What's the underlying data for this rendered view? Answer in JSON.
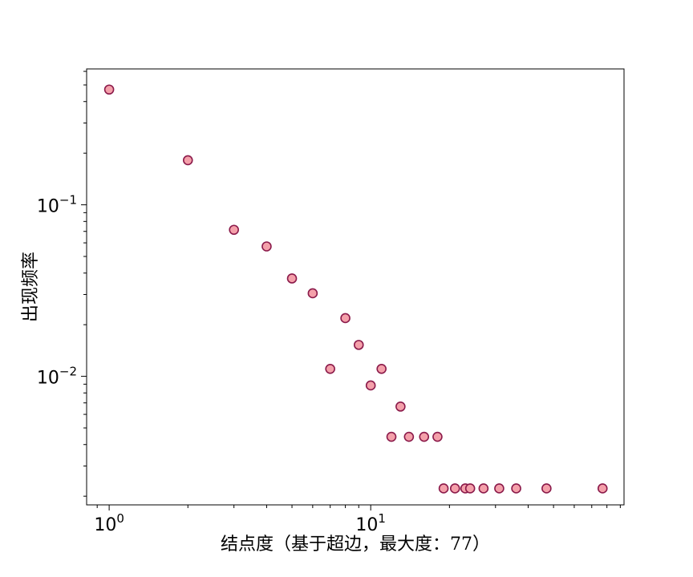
{
  "chart_data": {
    "type": "scatter",
    "title": "",
    "xlabel": "结点度（基于超边，最大度：77）",
    "ylabel": "出现频率",
    "xscale": "log",
    "yscale": "log",
    "xlim": [
      0.82,
      93
    ],
    "ylim": [
      0.00178,
      0.62
    ],
    "grid": false,
    "legend": "none",
    "x_ticks": [
      {
        "value": 1,
        "base": "10",
        "exp": "0"
      },
      {
        "value": 10,
        "base": "10",
        "exp": "1"
      }
    ],
    "y_ticks": [
      {
        "value": 0.1,
        "base": "10",
        "exp": "−1"
      },
      {
        "value": 0.01,
        "base": "10",
        "exp": "−2"
      }
    ],
    "marker": {
      "fill": "#f4a0aa",
      "edge": "#8b1a4a"
    },
    "points": [
      {
        "x": 1,
        "y": 0.47
      },
      {
        "x": 2,
        "y": 0.182
      },
      {
        "x": 3,
        "y": 0.0715
      },
      {
        "x": 4,
        "y": 0.0572
      },
      {
        "x": 5,
        "y": 0.0372
      },
      {
        "x": 6,
        "y": 0.0305
      },
      {
        "x": 7,
        "y": 0.01105
      },
      {
        "x": 8,
        "y": 0.02185
      },
      {
        "x": 9,
        "y": 0.01525
      },
      {
        "x": 10,
        "y": 0.00885
      },
      {
        "x": 11,
        "y": 0.01105
      },
      {
        "x": 13,
        "y": 0.00666
      },
      {
        "x": 12,
        "y": 0.00444
      },
      {
        "x": 14,
        "y": 0.00444
      },
      {
        "x": 16,
        "y": 0.00444
      },
      {
        "x": 18,
        "y": 0.00444
      },
      {
        "x": 19,
        "y": 0.00222
      },
      {
        "x": 21,
        "y": 0.00222
      },
      {
        "x": 23,
        "y": 0.00222
      },
      {
        "x": 24,
        "y": 0.00222
      },
      {
        "x": 27,
        "y": 0.00222
      },
      {
        "x": 31,
        "y": 0.00222
      },
      {
        "x": 36,
        "y": 0.00222
      },
      {
        "x": 47,
        "y": 0.00222
      },
      {
        "x": 77,
        "y": 0.00222
      }
    ]
  }
}
